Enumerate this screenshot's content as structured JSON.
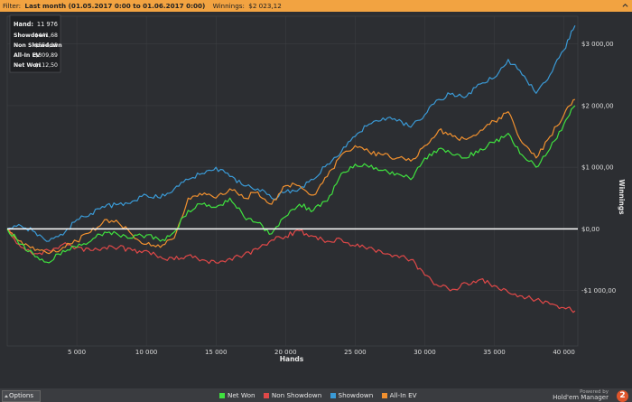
{
  "filter": {
    "label": "Filter:",
    "range": "Last month (01.05.2017 0:00 to 01.06.2017 0:00)",
    "winnings_label": "Winnings:",
    "winnings_value": "$2 023,12"
  },
  "stats": [
    {
      "label": "Hand:",
      "value": "11 976"
    },
    {
      "label": "Showdown",
      "value": "$441,68"
    },
    {
      "label": "Non Showdown",
      "value": "-$554,18"
    },
    {
      "label": "All-In EV",
      "value": "-$309,89"
    },
    {
      "label": "Net Won",
      "value": "-$112,50"
    }
  ],
  "bottom": {
    "options_label": "Options",
    "powered_by": "Powered by",
    "brand": "Hold'em Manager",
    "logo": "2"
  },
  "colors": {
    "net_won": "#3fe23f",
    "non_showdown": "#e04848",
    "showdown": "#3a9ad6",
    "all_in_ev": "#f0902f",
    "zero_line": "#ffffff",
    "grid": "#3b3d41",
    "accent": "#f2a341"
  },
  "chart_data": {
    "type": "line",
    "xlabel": "Hands",
    "ylabel": "Winnings",
    "xlim": [
      0,
      41000
    ],
    "ylim": [
      -1900,
      3450
    ],
    "x_ticks": [
      {
        "value": 5000,
        "label": "5 000"
      },
      {
        "value": 10000,
        "label": "10 000"
      },
      {
        "value": 15000,
        "label": "15 000"
      },
      {
        "value": 20000,
        "label": "20 000"
      },
      {
        "value": 25000,
        "label": "25 000"
      },
      {
        "value": 30000,
        "label": "30 000"
      },
      {
        "value": 35000,
        "label": "35 000"
      },
      {
        "value": 40000,
        "label": "40 000"
      }
    ],
    "y_ticks": [
      {
        "value": 3000,
        "label": "$3 000,00"
      },
      {
        "value": 2000,
        "label": "$2 000,00"
      },
      {
        "value": 1000,
        "label": "$1 000,00"
      },
      {
        "value": 0,
        "label": "$0,00"
      },
      {
        "value": -1000,
        "label": "-$1 000,00"
      }
    ],
    "grid": true,
    "legend_position": "bottom",
    "series": [
      {
        "name": "Net Won",
        "color_key": "net_won",
        "x": [
          0,
          1000,
          2000,
          3000,
          4000,
          5000,
          6000,
          7000,
          8000,
          9000,
          10000,
          11000,
          12000,
          13000,
          14000,
          15000,
          16000,
          17000,
          18000,
          19000,
          20000,
          21000,
          22000,
          23000,
          24000,
          25000,
          26000,
          27000,
          28000,
          29000,
          30000,
          31000,
          32000,
          33000,
          34000,
          35000,
          36000,
          37000,
          38000,
          39000,
          40000,
          40800
        ],
        "y": [
          0,
          -250,
          -450,
          -550,
          -350,
          -300,
          -200,
          -50,
          -100,
          -150,
          -100,
          -200,
          -50,
          300,
          400,
          350,
          500,
          200,
          100,
          -80,
          200,
          400,
          300,
          450,
          900,
          1050,
          1000,
          950,
          900,
          800,
          1150,
          1300,
          1200,
          1150,
          1300,
          1400,
          1550,
          1200,
          1000,
          1300,
          1700,
          2000
        ]
      },
      {
        "name": "Non Showdown",
        "color_key": "non_showdown",
        "x": [
          0,
          1000,
          2000,
          3000,
          4000,
          5000,
          6000,
          7000,
          8000,
          9000,
          10000,
          11000,
          12000,
          13000,
          14000,
          15000,
          16000,
          17000,
          18000,
          19000,
          20000,
          21000,
          22000,
          23000,
          24000,
          25000,
          26000,
          27000,
          28000,
          29000,
          30000,
          31000,
          32000,
          33000,
          34000,
          35000,
          36000,
          37000,
          38000,
          39000,
          40000,
          40800
        ],
        "y": [
          0,
          -300,
          -400,
          -350,
          -250,
          -300,
          -350,
          -300,
          -300,
          -350,
          -350,
          -450,
          -500,
          -430,
          -500,
          -550,
          -480,
          -420,
          -330,
          -180,
          -120,
          -30,
          -120,
          -200,
          -170,
          -280,
          -300,
          -400,
          -430,
          -500,
          -750,
          -930,
          -980,
          -880,
          -820,
          -920,
          -1030,
          -1090,
          -1150,
          -1220,
          -1280,
          -1330
        ]
      },
      {
        "name": "Showdown",
        "color_key": "showdown",
        "x": [
          0,
          1000,
          2000,
          3000,
          4000,
          5000,
          6000,
          7000,
          8000,
          9000,
          10000,
          11000,
          12000,
          13000,
          14000,
          15000,
          16000,
          17000,
          18000,
          19000,
          20000,
          21000,
          22000,
          23000,
          24000,
          25000,
          26000,
          27000,
          28000,
          29000,
          30000,
          31000,
          32000,
          33000,
          34000,
          35000,
          36000,
          37000,
          38000,
          39000,
          40000,
          40800
        ],
        "y": [
          0,
          50,
          -50,
          -200,
          -100,
          150,
          250,
          350,
          400,
          450,
          550,
          500,
          650,
          800,
          900,
          1000,
          850,
          700,
          650,
          500,
          600,
          650,
          800,
          1050,
          1250,
          1500,
          1700,
          1800,
          1750,
          1650,
          1850,
          2100,
          2200,
          2150,
          2350,
          2450,
          2750,
          2500,
          2200,
          2500,
          2900,
          3300
        ]
      },
      {
        "name": "All-In EV",
        "color_key": "all_in_ev",
        "x": [
          0,
          1000,
          2000,
          3000,
          4000,
          5000,
          6000,
          7000,
          8000,
          9000,
          10000,
          11000,
          12000,
          13000,
          14000,
          15000,
          16000,
          17000,
          18000,
          19000,
          20000,
          21000,
          22000,
          23000,
          24000,
          25000,
          26000,
          27000,
          28000,
          29000,
          30000,
          31000,
          32000,
          33000,
          34000,
          35000,
          36000,
          37000,
          38000,
          39000,
          40000,
          40800
        ],
        "y": [
          0,
          -200,
          -350,
          -400,
          -300,
          -200,
          -50,
          150,
          100,
          -100,
          -250,
          -300,
          -150,
          500,
          550,
          500,
          650,
          500,
          600,
          400,
          700,
          700,
          550,
          850,
          1200,
          1350,
          1250,
          1200,
          1150,
          1100,
          1350,
          1600,
          1500,
          1450,
          1600,
          1750,
          1900,
          1400,
          1150,
          1500,
          1850,
          2100
        ]
      }
    ]
  }
}
